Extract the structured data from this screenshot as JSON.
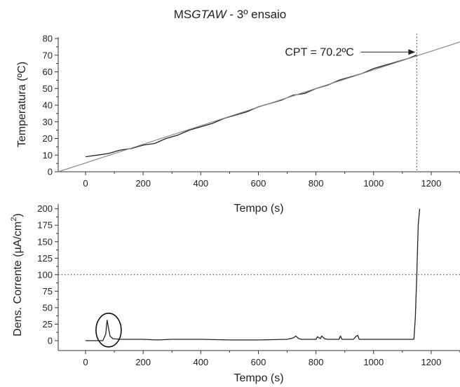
{
  "figure": {
    "title_prefix": "MS",
    "title_italic": "GTAW",
    "title_suffix": " - 3º ensaio"
  },
  "chart_data": [
    {
      "type": "line",
      "xlabel": "Tempo (s)",
      "ylabel": "Temperatura (ºC)",
      "xlim": [
        -95,
        1300
      ],
      "ylim": [
        0,
        80
      ],
      "xticks": [
        0,
        200,
        400,
        600,
        800,
        1000,
        1200
      ],
      "yticks": [
        0,
        10,
        20,
        30,
        40,
        50,
        60,
        70,
        80
      ],
      "annotation": {
        "text": "CPT = 70.2ºC",
        "x": 1150,
        "y": 70.2
      },
      "vline_x": 1150,
      "series": [
        {
          "style": "measured",
          "x": [
            0,
            40,
            80,
            120,
            160,
            200,
            240,
            280,
            320,
            360,
            400,
            440,
            480,
            520,
            560,
            600,
            640,
            680,
            720,
            760,
            800,
            840,
            880,
            920,
            960,
            1000,
            1040,
            1080,
            1120,
            1150
          ],
          "y": [
            9,
            10,
            11,
            13,
            14,
            16,
            17,
            20,
            22,
            25,
            27,
            29,
            32,
            34,
            36,
            39,
            41,
            43,
            46,
            47,
            50,
            52,
            55,
            57,
            59,
            62,
            64,
            66,
            68,
            70.2
          ]
        },
        {
          "style": "fit",
          "x": [
            -95,
            1300
          ],
          "y": [
            0,
            78
          ]
        }
      ]
    },
    {
      "type": "line",
      "xlabel": "Tempo (s)",
      "ylabel_prefix": "Dens. Corrente (µA/cm",
      "ylabel_sup": "2",
      "ylabel_suffix": ")",
      "xlim": [
        -95,
        1300
      ],
      "ylim": [
        -15,
        205
      ],
      "xticks": [
        0,
        200,
        400,
        600,
        800,
        1000,
        1200
      ],
      "yticks": [
        0,
        25,
        50,
        75,
        100,
        125,
        150,
        175,
        200
      ],
      "hline_y": 100,
      "circle_at": {
        "x": 80,
        "y": 16
      },
      "series": [
        {
          "style": "measured",
          "x": [
            0,
            60,
            70,
            75,
            80,
            85,
            95,
            120,
            200,
            250,
            300,
            400,
            500,
            600,
            700,
            720,
            730,
            740,
            750,
            800,
            805,
            815,
            820,
            830,
            840,
            880,
            885,
            890,
            895,
            930,
            940,
            945,
            950,
            1000,
            1100,
            1140,
            1145,
            1150,
            1155,
            1160
          ],
          "y": [
            0,
            0,
            10,
            31,
            18,
            7,
            3,
            2,
            2,
            1,
            2,
            2,
            1,
            1,
            2,
            4,
            7,
            3,
            2,
            2,
            6,
            3,
            7,
            3,
            2,
            2,
            7,
            2,
            2,
            2,
            7,
            8,
            2,
            2,
            2,
            2,
            35,
            100,
            175,
            200
          ]
        }
      ]
    }
  ]
}
